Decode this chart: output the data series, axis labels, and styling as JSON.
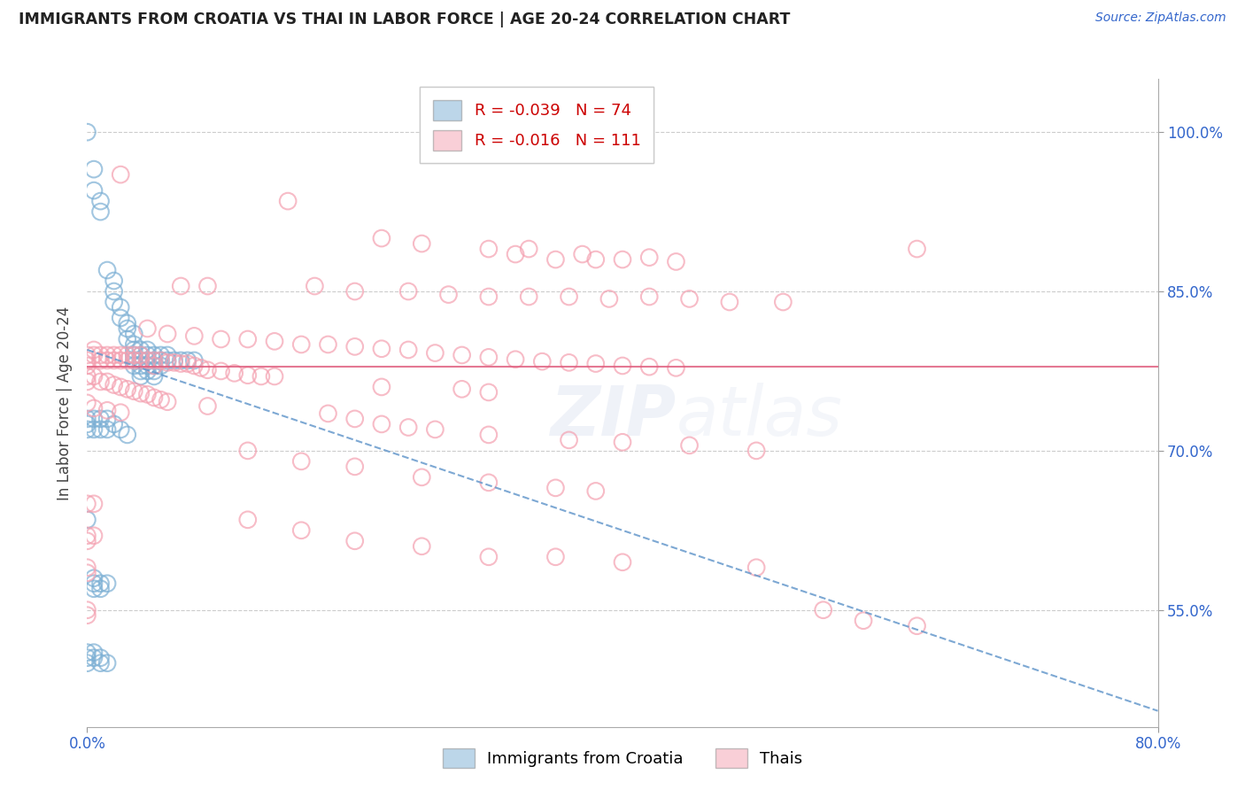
{
  "title": "IMMIGRANTS FROM CROATIA VS THAI IN LABOR FORCE | AGE 20-24 CORRELATION CHART",
  "source": "Source: ZipAtlas.com",
  "ylabel": "In Labor Force | Age 20-24",
  "ytick_labels": [
    "100.0%",
    "85.0%",
    "70.0%",
    "55.0%"
  ],
  "ytick_values": [
    1.0,
    0.85,
    0.7,
    0.55
  ],
  "xlim": [
    0.0,
    0.8
  ],
  "ylim": [
    0.44,
    1.05
  ],
  "croatia_R": "-0.039",
  "croatia_N": "74",
  "thai_R": "-0.016",
  "thai_N": "111",
  "croatia_color": "#7BAFD4",
  "thai_color": "#F4A0B0",
  "watermark": "ZIPatlas",
  "legend_label_croatia": "Immigrants from Croatia",
  "legend_label_thai": "Thais",
  "croatia_scatter": [
    [
      0.0,
      1.0
    ],
    [
      0.005,
      0.965
    ],
    [
      0.005,
      0.945
    ],
    [
      0.01,
      0.935
    ],
    [
      0.01,
      0.925
    ],
    [
      0.015,
      0.87
    ],
    [
      0.02,
      0.86
    ],
    [
      0.02,
      0.85
    ],
    [
      0.02,
      0.84
    ],
    [
      0.025,
      0.835
    ],
    [
      0.025,
      0.825
    ],
    [
      0.03,
      0.82
    ],
    [
      0.03,
      0.815
    ],
    [
      0.03,
      0.805
    ],
    [
      0.035,
      0.81
    ],
    [
      0.035,
      0.8
    ],
    [
      0.035,
      0.795
    ],
    [
      0.035,
      0.79
    ],
    [
      0.035,
      0.785
    ],
    [
      0.035,
      0.78
    ],
    [
      0.04,
      0.795
    ],
    [
      0.04,
      0.79
    ],
    [
      0.04,
      0.785
    ],
    [
      0.04,
      0.78
    ],
    [
      0.04,
      0.775
    ],
    [
      0.04,
      0.77
    ],
    [
      0.045,
      0.795
    ],
    [
      0.045,
      0.79
    ],
    [
      0.045,
      0.785
    ],
    [
      0.045,
      0.78
    ],
    [
      0.045,
      0.775
    ],
    [
      0.05,
      0.79
    ],
    [
      0.05,
      0.785
    ],
    [
      0.05,
      0.78
    ],
    [
      0.05,
      0.775
    ],
    [
      0.05,
      0.77
    ],
    [
      0.055,
      0.79
    ],
    [
      0.055,
      0.785
    ],
    [
      0.055,
      0.78
    ],
    [
      0.06,
      0.79
    ],
    [
      0.06,
      0.785
    ],
    [
      0.065,
      0.785
    ],
    [
      0.07,
      0.785
    ],
    [
      0.075,
      0.785
    ],
    [
      0.08,
      0.785
    ],
    [
      0.0,
      0.73
    ],
    [
      0.0,
      0.725
    ],
    [
      0.0,
      0.72
    ],
    [
      0.005,
      0.73
    ],
    [
      0.005,
      0.72
    ],
    [
      0.01,
      0.73
    ],
    [
      0.01,
      0.72
    ],
    [
      0.015,
      0.73
    ],
    [
      0.015,
      0.72
    ],
    [
      0.02,
      0.725
    ],
    [
      0.025,
      0.72
    ],
    [
      0.03,
      0.715
    ],
    [
      0.0,
      0.635
    ],
    [
      0.005,
      0.58
    ],
    [
      0.005,
      0.575
    ],
    [
      0.005,
      0.57
    ],
    [
      0.01,
      0.575
    ],
    [
      0.01,
      0.57
    ],
    [
      0.015,
      0.575
    ],
    [
      0.0,
      0.51
    ],
    [
      0.0,
      0.505
    ],
    [
      0.0,
      0.5
    ],
    [
      0.005,
      0.51
    ],
    [
      0.005,
      0.505
    ],
    [
      0.01,
      0.505
    ],
    [
      0.01,
      0.5
    ],
    [
      0.015,
      0.5
    ]
  ],
  "thai_scatter": [
    [
      0.025,
      0.96
    ],
    [
      0.15,
      0.935
    ],
    [
      0.22,
      0.9
    ],
    [
      0.25,
      0.895
    ],
    [
      0.3,
      0.89
    ],
    [
      0.33,
      0.89
    ],
    [
      0.37,
      0.885
    ],
    [
      0.32,
      0.885
    ],
    [
      0.35,
      0.88
    ],
    [
      0.38,
      0.88
    ],
    [
      0.4,
      0.88
    ],
    [
      0.42,
      0.882
    ],
    [
      0.44,
      0.878
    ],
    [
      0.62,
      0.89
    ],
    [
      0.07,
      0.855
    ],
    [
      0.09,
      0.855
    ],
    [
      0.17,
      0.855
    ],
    [
      0.2,
      0.85
    ],
    [
      0.24,
      0.85
    ],
    [
      0.27,
      0.847
    ],
    [
      0.3,
      0.845
    ],
    [
      0.33,
      0.845
    ],
    [
      0.36,
      0.845
    ],
    [
      0.39,
      0.843
    ],
    [
      0.42,
      0.845
    ],
    [
      0.45,
      0.843
    ],
    [
      0.48,
      0.84
    ],
    [
      0.52,
      0.84
    ],
    [
      0.045,
      0.815
    ],
    [
      0.06,
      0.81
    ],
    [
      0.08,
      0.808
    ],
    [
      0.1,
      0.805
    ],
    [
      0.12,
      0.805
    ],
    [
      0.14,
      0.803
    ],
    [
      0.16,
      0.8
    ],
    [
      0.18,
      0.8
    ],
    [
      0.2,
      0.798
    ],
    [
      0.22,
      0.796
    ],
    [
      0.24,
      0.795
    ],
    [
      0.26,
      0.792
    ],
    [
      0.28,
      0.79
    ],
    [
      0.3,
      0.788
    ],
    [
      0.32,
      0.786
    ],
    [
      0.34,
      0.784
    ],
    [
      0.36,
      0.783
    ],
    [
      0.38,
      0.782
    ],
    [
      0.4,
      0.78
    ],
    [
      0.42,
      0.779
    ],
    [
      0.44,
      0.778
    ],
    [
      0.0,
      0.79
    ],
    [
      0.0,
      0.785
    ],
    [
      0.0,
      0.78
    ],
    [
      0.005,
      0.795
    ],
    [
      0.005,
      0.79
    ],
    [
      0.01,
      0.79
    ],
    [
      0.01,
      0.785
    ],
    [
      0.015,
      0.79
    ],
    [
      0.015,
      0.785
    ],
    [
      0.02,
      0.79
    ],
    [
      0.02,
      0.785
    ],
    [
      0.025,
      0.79
    ],
    [
      0.025,
      0.785
    ],
    [
      0.03,
      0.79
    ],
    [
      0.03,
      0.785
    ],
    [
      0.035,
      0.79
    ],
    [
      0.035,
      0.785
    ],
    [
      0.04,
      0.79
    ],
    [
      0.04,
      0.785
    ],
    [
      0.045,
      0.785
    ],
    [
      0.05,
      0.785
    ],
    [
      0.05,
      0.78
    ],
    [
      0.055,
      0.785
    ],
    [
      0.06,
      0.783
    ],
    [
      0.065,
      0.783
    ],
    [
      0.07,
      0.782
    ],
    [
      0.075,
      0.782
    ],
    [
      0.08,
      0.78
    ],
    [
      0.085,
      0.778
    ],
    [
      0.09,
      0.776
    ],
    [
      0.1,
      0.775
    ],
    [
      0.11,
      0.773
    ],
    [
      0.12,
      0.771
    ],
    [
      0.13,
      0.77
    ],
    [
      0.14,
      0.77
    ],
    [
      0.22,
      0.76
    ],
    [
      0.28,
      0.758
    ],
    [
      0.3,
      0.755
    ],
    [
      0.0,
      0.77
    ],
    [
      0.0,
      0.765
    ],
    [
      0.005,
      0.77
    ],
    [
      0.01,
      0.765
    ],
    [
      0.015,
      0.765
    ],
    [
      0.02,
      0.762
    ],
    [
      0.025,
      0.76
    ],
    [
      0.03,
      0.758
    ],
    [
      0.035,
      0.756
    ],
    [
      0.04,
      0.754
    ],
    [
      0.045,
      0.753
    ],
    [
      0.05,
      0.75
    ],
    [
      0.055,
      0.748
    ],
    [
      0.06,
      0.746
    ],
    [
      0.09,
      0.742
    ],
    [
      0.18,
      0.735
    ],
    [
      0.2,
      0.73
    ],
    [
      0.22,
      0.725
    ],
    [
      0.24,
      0.722
    ],
    [
      0.26,
      0.72
    ],
    [
      0.3,
      0.715
    ],
    [
      0.36,
      0.71
    ],
    [
      0.4,
      0.708
    ],
    [
      0.45,
      0.705
    ],
    [
      0.5,
      0.7
    ],
    [
      0.0,
      0.745
    ],
    [
      0.005,
      0.74
    ],
    [
      0.015,
      0.738
    ],
    [
      0.025,
      0.736
    ],
    [
      0.12,
      0.7
    ],
    [
      0.16,
      0.69
    ],
    [
      0.2,
      0.685
    ],
    [
      0.25,
      0.675
    ],
    [
      0.3,
      0.67
    ],
    [
      0.35,
      0.665
    ],
    [
      0.38,
      0.662
    ],
    [
      0.0,
      0.65
    ],
    [
      0.005,
      0.65
    ],
    [
      0.12,
      0.635
    ],
    [
      0.16,
      0.625
    ],
    [
      0.2,
      0.615
    ],
    [
      0.25,
      0.61
    ],
    [
      0.3,
      0.6
    ],
    [
      0.35,
      0.6
    ],
    [
      0.4,
      0.595
    ],
    [
      0.5,
      0.59
    ],
    [
      0.55,
      0.55
    ],
    [
      0.58,
      0.54
    ],
    [
      0.62,
      0.535
    ],
    [
      0.0,
      0.62
    ],
    [
      0.0,
      0.615
    ],
    [
      0.005,
      0.62
    ],
    [
      0.0,
      0.59
    ],
    [
      0.0,
      0.585
    ],
    [
      0.0,
      0.55
    ],
    [
      0.0,
      0.545
    ]
  ],
  "croatia_line_start_x": 0.0,
  "croatia_line_start_y": 0.795,
  "croatia_line_end_x": 0.8,
  "croatia_line_end_y": 0.455,
  "thai_line_start_x": 0.0,
  "thai_line_start_y": 0.779,
  "thai_line_end_x": 0.8,
  "thai_line_end_y": 0.779
}
